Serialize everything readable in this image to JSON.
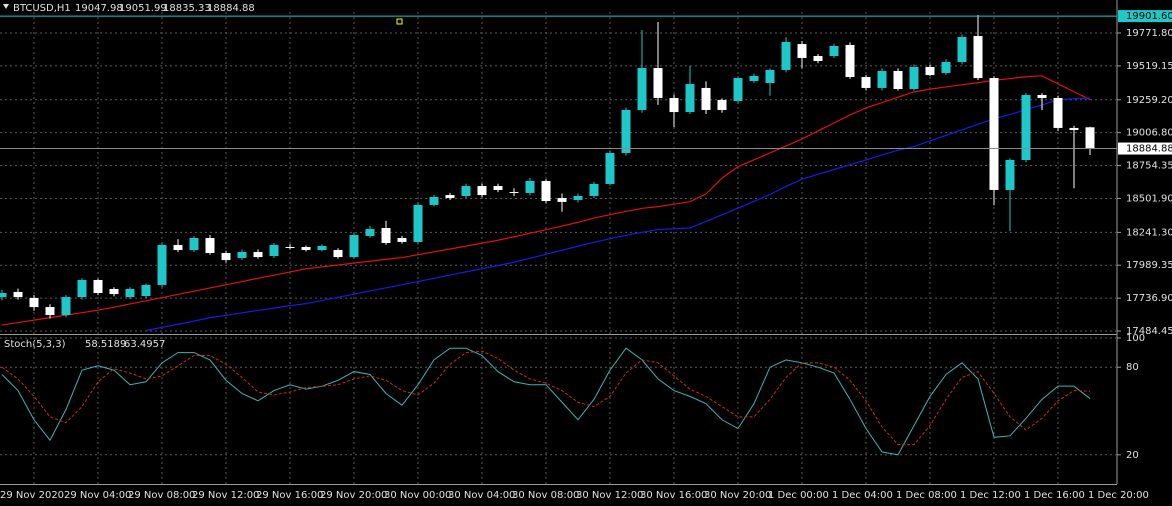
{
  "chart_data": [
    {
      "type": "candlestick",
      "title": "BTCUSD,H1",
      "categories": [
        "29 Nov 2020",
        null,
        null,
        null,
        "29 Nov 04:00",
        null,
        null,
        null,
        "29 Nov 08:00",
        null,
        null,
        null,
        "29 Nov 12:00",
        null,
        null,
        null,
        "29 Nov 16:00",
        null,
        null,
        null,
        "29 Nov 20:00",
        null,
        null,
        null,
        "30 Nov 00:00",
        null,
        null,
        null,
        "30 Nov 04:00",
        null,
        null,
        null,
        "30 Nov 08:00",
        null,
        null,
        null,
        "30 Nov 12:00",
        null,
        null,
        null,
        "30 Nov 16:00",
        null,
        null,
        null,
        "30 Nov 20:00",
        null,
        null,
        null,
        "1 Dec 00:00",
        null,
        null,
        null,
        "1 Dec 04:00",
        null,
        null,
        null,
        "1 Dec 08:00",
        null,
        null,
        null,
        "1 Dec 12:00",
        null,
        null,
        null,
        "1 Dec 16:00",
        null,
        null,
        null,
        "1 Dec 20:00"
      ],
      "open": [
        17745,
        17784,
        17738,
        17668,
        17607,
        17745,
        17876,
        17807,
        17745,
        17753,
        17838,
        18145,
        18106,
        18198,
        18083,
        18045,
        18091,
        18060,
        18129,
        18129,
        18106,
        18106,
        18052,
        18214,
        18275,
        18198,
        18168,
        18452,
        18528,
        18521,
        18597,
        18597,
        18551,
        18544,
        18636,
        18505,
        18490,
        18521,
        18613,
        18851,
        19181,
        19503,
        19273,
        19165,
        19350,
        19258,
        19250,
        19403,
        19388,
        19488,
        19687,
        19595,
        19595,
        19680,
        19434,
        19350,
        19480,
        19342,
        19511,
        19465,
        19549,
        19749,
        19426,
        18567,
        18797,
        19296,
        19273,
        19043,
        19047.98
      ],
      "high": [
        17800,
        17810,
        17760,
        17690,
        17760,
        17890,
        17885,
        17820,
        17820,
        17850,
        18160,
        18190,
        18215,
        18220,
        18100,
        18110,
        18110,
        18160,
        18150,
        18140,
        18150,
        18120,
        18240,
        18290,
        18330,
        18215,
        18470,
        18530,
        18545,
        18615,
        18615,
        18615,
        18580,
        18660,
        18650,
        18540,
        18540,
        18630,
        18870,
        19200,
        19795,
        19856,
        19300,
        19520,
        19400,
        19270,
        19440,
        19460,
        19500,
        19740,
        19710,
        19610,
        19690,
        19700,
        19450,
        19500,
        19500,
        19530,
        19530,
        19570,
        19760,
        19910,
        19440,
        18810,
        19310,
        19310,
        19290,
        19060,
        19051.99
      ],
      "low": [
        17720,
        17725,
        17640,
        17580,
        17590,
        17725,
        17760,
        17750,
        17730,
        17735,
        17820,
        18090,
        18090,
        18070,
        18010,
        18030,
        18040,
        18045,
        18110,
        18095,
        18095,
        18040,
        18040,
        18200,
        18145,
        18155,
        18150,
        18440,
        18490,
        18505,
        18510,
        18550,
        18520,
        18525,
        18465,
        18400,
        18470,
        18505,
        18600,
        18830,
        19160,
        19220,
        19050,
        19150,
        19150,
        19160,
        19230,
        19390,
        19290,
        19470,
        19500,
        19540,
        19580,
        19420,
        19330,
        19330,
        19330,
        19330,
        19440,
        19450,
        19530,
        19410,
        18450,
        18250,
        18780,
        19180,
        19020,
        18580,
        18835.33
      ],
      "close": [
        17776,
        17745,
        17668,
        17607,
        17745,
        17876,
        17776,
        17768,
        17807,
        17838,
        18145,
        18106,
        18198,
        18083,
        18029,
        18091,
        18052,
        18145,
        18122,
        18106,
        18137,
        18052,
        18221,
        18267,
        18160,
        18168,
        18452,
        18513,
        18505,
        18597,
        18528,
        18567,
        18544,
        18636,
        18482,
        18475,
        18521,
        18613,
        18851,
        19181,
        19503,
        19273,
        19165,
        19380,
        19181,
        19181,
        19426,
        19442,
        19488,
        19703,
        19580,
        19557,
        19672,
        19434,
        19350,
        19480,
        19342,
        19511,
        19449,
        19549,
        19741,
        19426,
        18567,
        18797,
        19296,
        19273,
        19043,
        19027,
        18884.88
      ],
      "up_color": "#1ec8c8",
      "down_color": "#ffffff",
      "series": [
        {
          "color": "#e01010",
          "values": [
            17530,
            17549,
            17568,
            17587,
            17606,
            17625,
            17644,
            17667,
            17692,
            17716,
            17741,
            17765,
            17790,
            17815,
            17839,
            17864,
            17889,
            17913,
            17938,
            17962,
            17976,
            17991,
            18006,
            18020,
            18035,
            18048,
            18070,
            18092,
            18114,
            18136,
            18159,
            18181,
            18207,
            18235,
            18262,
            18290,
            18318,
            18352,
            18377,
            18402,
            18426,
            18439,
            18458,
            18478,
            18536,
            18658,
            18746,
            18798,
            18851,
            18904,
            18958,
            19020,
            19081,
            19143,
            19197,
            19238,
            19279,
            19320,
            19341,
            19358,
            19374,
            19391,
            19408,
            19422,
            19436,
            19443,
            19382,
            19321,
            19260
          ]
        },
        {
          "color": "#1a1ae6",
          "values": [
            null,
            null,
            null,
            null,
            null,
            null,
            null,
            null,
            null,
            17488,
            17512,
            17536,
            17560,
            17587,
            17605,
            17624,
            17642,
            17660,
            17679,
            17694,
            17718,
            17743,
            17767,
            17792,
            17816,
            17840,
            17864,
            17889,
            17914,
            17938,
            17963,
            17987,
            18012,
            18042,
            18073,
            18104,
            18135,
            18165,
            18193,
            18218,
            18242,
            18263,
            18269,
            18275,
            18325,
            18376,
            18428,
            18479,
            18533,
            18594,
            18650,
            18687,
            18724,
            18761,
            18798,
            18835,
            18872,
            18900,
            18943,
            18986,
            19029,
            19071,
            19114,
            19146,
            19183,
            19220,
            19261,
            19267,
            19273
          ]
        }
      ],
      "ylim": [
        17469,
        19933
      ],
      "yticks": [
        {
          "value": 19771.8,
          "label": "19771.80"
        },
        19519.15,
        {
          "value": 19259.2,
          "label": "19259.20"
        },
        {
          "value": 19006.8,
          "label": "19006.80"
        },
        18754.35,
        {
          "value": 18501.9,
          "label": "18501.90"
        },
        {
          "value": 18241.3,
          "label": "18241.30"
        },
        17989.35,
        {
          "value": 17736.9,
          "label": "17736.90"
        },
        17484.45
      ],
      "hline": {
        "value": 19901.6,
        "label": "19901.60",
        "color": "#20c8c8"
      },
      "grid": true
    },
    {
      "type": "line",
      "title": "Stoch(5,3,3)",
      "series": [
        {
          "color": "#3cb4b4",
          "values": [
            75,
            64,
            44,
            30,
            51,
            78,
            81,
            78,
            68,
            70,
            83,
            90,
            90,
            85,
            71,
            62,
            57,
            64,
            68,
            65,
            67,
            71,
            77,
            75,
            62,
            54,
            68,
            85,
            93,
            93,
            88,
            77,
            70,
            68,
            68,
            56,
            44,
            58,
            78,
            93,
            85,
            72,
            64,
            60,
            55,
            44,
            38,
            55,
            80,
            85,
            83,
            80,
            76,
            58,
            38,
            22,
            20,
            40,
            60,
            75,
            83,
            72,
            32,
            33,
            45,
            58,
            67,
            67,
            58.5189
          ]
        },
        {
          "color": "#d0281e",
          "dashed": true,
          "values": [
            80,
            72,
            60,
            46,
            42,
            53,
            70,
            79,
            76,
            72,
            74,
            81,
            88,
            88,
            82,
            73,
            63,
            61,
            63,
            66,
            67,
            68,
            72,
            74,
            71,
            64,
            61,
            69,
            82,
            90,
            91,
            86,
            78,
            72,
            69,
            64,
            56,
            53,
            60,
            76,
            85,
            83,
            74,
            65,
            60,
            53,
            46,
            46,
            58,
            73,
            83,
            83,
            80,
            71,
            57,
            39,
            27,
            27,
            40,
            58,
            73,
            77,
            62,
            46,
            37,
            45,
            57,
            64,
            63.4957
          ]
        }
      ],
      "ylim": [
        0,
        100
      ],
      "yticks": [
        20,
        80,
        100
      ],
      "grid": true
    }
  ]
}
